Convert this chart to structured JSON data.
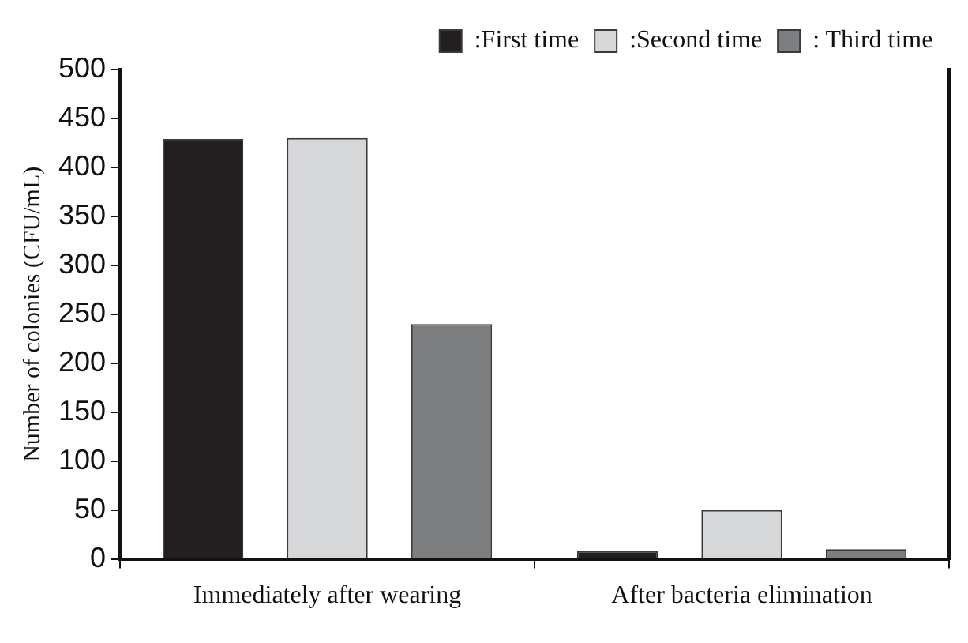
{
  "chart_data": {
    "type": "bar",
    "ylabel": "Number of colonies (CFU/mL)",
    "categories": [
      "Immediately after wearing",
      "After bacteria elimination"
    ],
    "series": [
      {
        "name": ":First time",
        "color": "#231f20",
        "values": [
          429,
          8
        ]
      },
      {
        "name": ":Second time",
        "color": "#d6d7d9",
        "values": [
          430,
          50
        ]
      },
      {
        "name": ": Third time",
        "color": "#7d7e80",
        "values": [
          240,
          10
        ]
      }
    ],
    "ylim": [
      0,
      500
    ],
    "yticks": [
      0,
      50,
      100,
      150,
      200,
      250,
      300,
      350,
      400,
      450,
      500
    ],
    "grid": false,
    "legend": "top right"
  }
}
